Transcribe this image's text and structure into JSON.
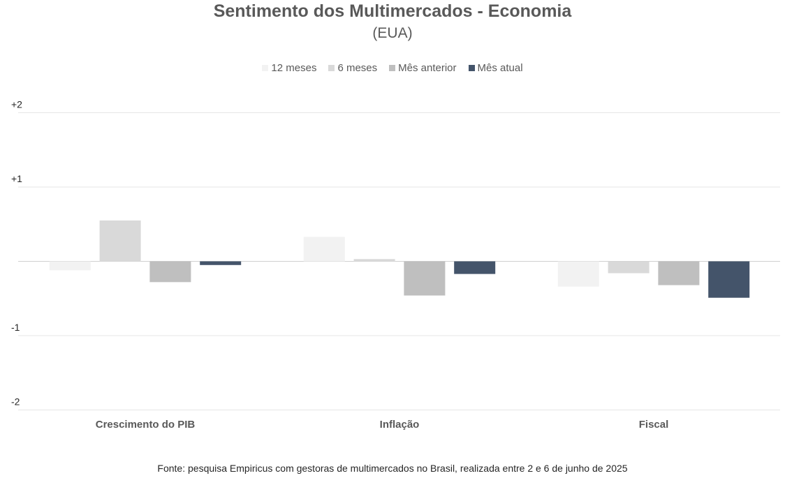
{
  "title": "Sentimento dos Multimercados - Economia",
  "subtitle": "(EUA)",
  "footer": "Fonte: pesquisa Empiricus com gestoras de multimercados no Brasil, realizada entre 2 e 6 de junho de 2025",
  "chart_data": {
    "type": "bar",
    "categories": [
      "Crescimento do PIB",
      "Inflação",
      "Fiscal"
    ],
    "series": [
      {
        "name": "12 meses",
        "color": "#f2f2f2",
        "values": [
          -0.12,
          0.33,
          -0.34
        ]
      },
      {
        "name": "6 meses",
        "color": "#d9d9d9",
        "values": [
          0.55,
          0.03,
          -0.16
        ]
      },
      {
        "name": "Mês anterior",
        "color": "#bfbfbf",
        "values": [
          -0.28,
          -0.46,
          -0.32
        ]
      },
      {
        "name": "Mês atual",
        "color": "#44546a",
        "values": [
          -0.05,
          -0.17,
          -0.49
        ]
      }
    ],
    "yticks": [
      {
        "value": 2,
        "label": "+2"
      },
      {
        "value": 1,
        "label": "+1"
      },
      {
        "value": -1,
        "label": "-1"
      },
      {
        "value": -2,
        "label": "-2"
      }
    ],
    "ylim": [
      -2,
      2
    ],
    "grid": true,
    "legend": "top-center"
  }
}
